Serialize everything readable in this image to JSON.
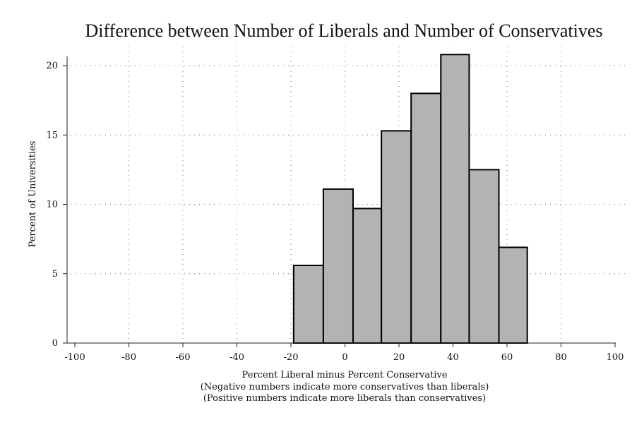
{
  "chart_data": {
    "type": "bar",
    "title": "Difference between Number of Liberals and Number of Conservatives",
    "xlabel": "Percent Liberal minus Percent Conservative",
    "xlabel_notes": [
      "(Negative numbers indicate more conservatives than liberals)",
      "(Positive numbers indicate more liberals than conservatives)"
    ],
    "ylabel": "Percent of Universities",
    "xlim": [
      -100,
      100
    ],
    "ylim": [
      0,
      20
    ],
    "x_ticks": [
      -100,
      -80,
      -60,
      -40,
      -20,
      0,
      20,
      40,
      60,
      80,
      100
    ],
    "y_ticks": [
      0,
      5,
      10,
      15,
      20
    ],
    "grid": true,
    "bins": [
      {
        "x0": -19,
        "x1": -8,
        "value": 5.6
      },
      {
        "x0": -8,
        "x1": 3,
        "value": 11.1
      },
      {
        "x0": 3,
        "x1": 13.5,
        "value": 9.7
      },
      {
        "x0": 13.5,
        "x1": 24.5,
        "value": 15.3
      },
      {
        "x0": 24.5,
        "x1": 35.5,
        "value": 18.0
      },
      {
        "x0": 35.5,
        "x1": 46,
        "value": 20.8
      },
      {
        "x0": 46,
        "x1": 57,
        "value": 12.5
      },
      {
        "x0": 57,
        "x1": 67.5,
        "value": 6.9
      }
    ],
    "colors": {
      "bar_fill": "#b3b3b3",
      "bar_stroke": "#000000"
    }
  }
}
